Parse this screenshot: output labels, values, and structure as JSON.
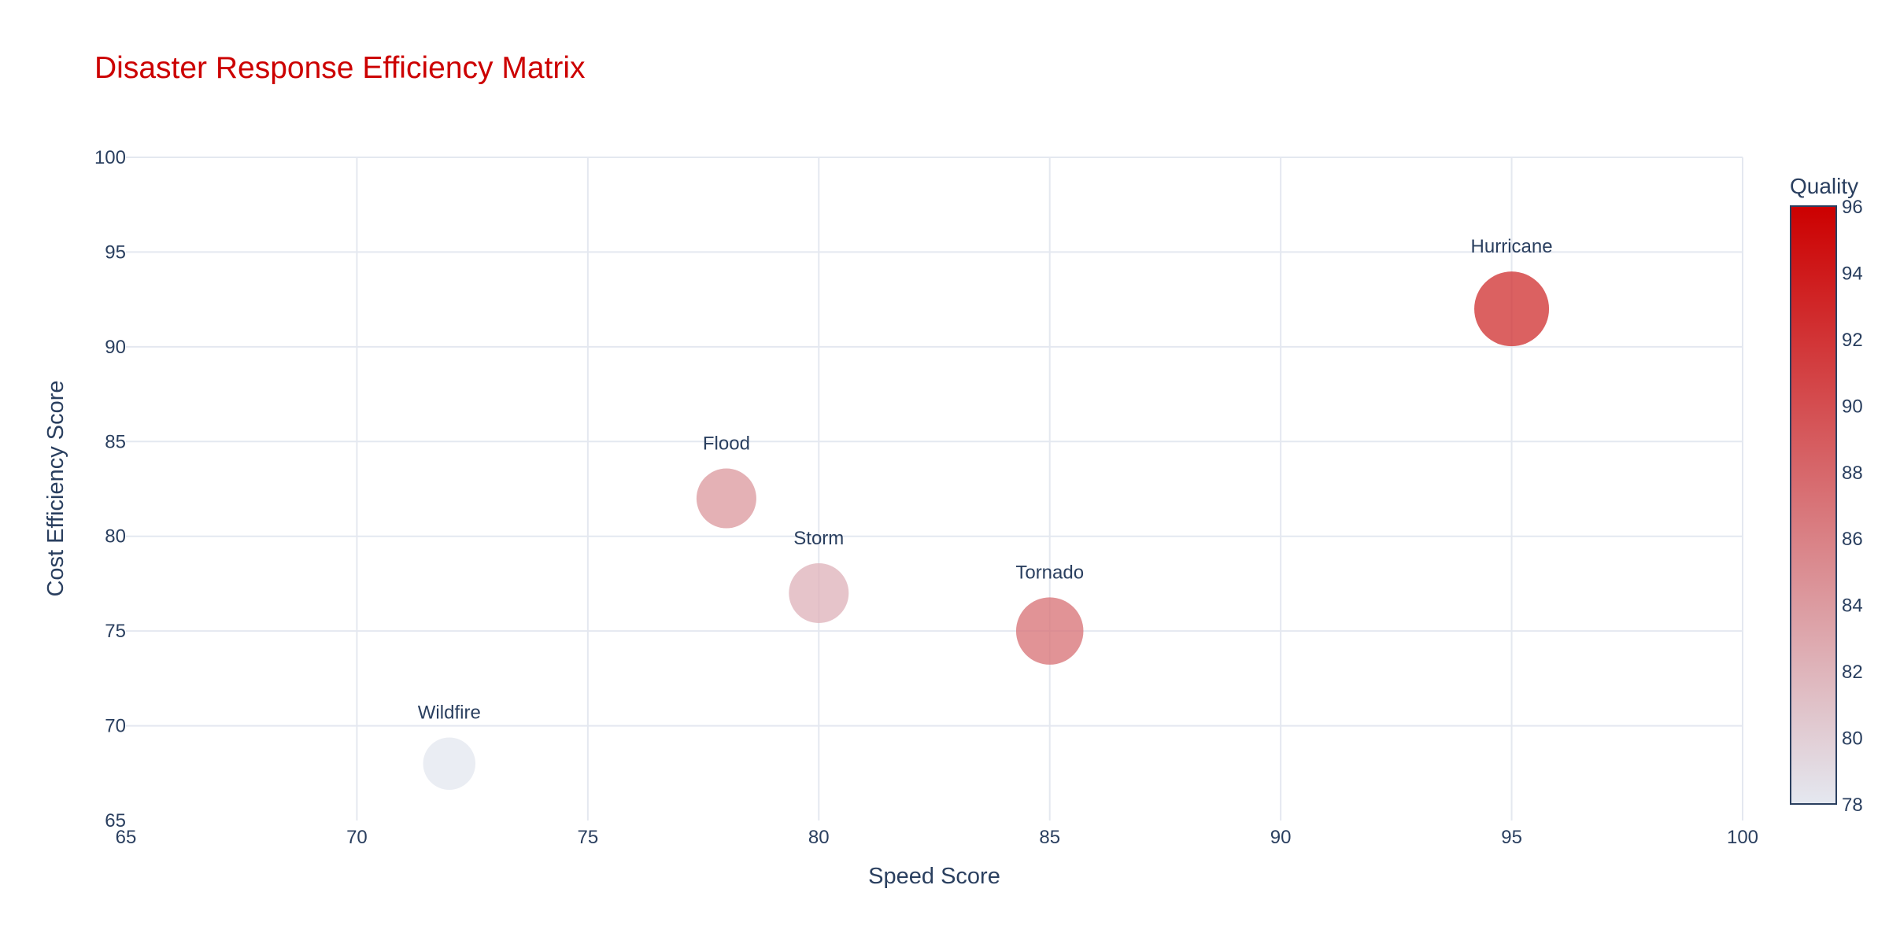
{
  "chart_data": {
    "type": "scatter",
    "title": "Disaster Response Efficiency Matrix",
    "xlabel": "Speed Score",
    "ylabel": "Cost Efficiency Score",
    "xlim": [
      65,
      100
    ],
    "ylim": [
      65,
      100
    ],
    "xticks": [
      65,
      70,
      75,
      80,
      85,
      90,
      95,
      100
    ],
    "yticks": [
      65,
      70,
      75,
      80,
      85,
      90,
      95,
      100
    ],
    "grid": true,
    "colorbar": {
      "title": "Quality",
      "range": [
        78,
        96
      ],
      "ticks": [
        78,
        80,
        82,
        84,
        86,
        88,
        90,
        92,
        94,
        96
      ],
      "color_low": "#e4e8f0",
      "color_high": "#cc0000",
      "placement": "right"
    },
    "points": [
      {
        "label": "Hurricane",
        "x": 95,
        "y": 92,
        "quality": 92,
        "size": 5
      },
      {
        "label": "Flood",
        "x": 78,
        "y": 82,
        "quality": 84,
        "size": 4
      },
      {
        "label": "Storm",
        "x": 80,
        "y": 77,
        "quality": 82,
        "size": 4
      },
      {
        "label": "Tornado",
        "x": 85,
        "y": 75,
        "quality": 87,
        "size": 4.5
      },
      {
        "label": "Wildfire",
        "x": 72,
        "y": 68,
        "quality": 78,
        "size": 3.5
      }
    ]
  }
}
